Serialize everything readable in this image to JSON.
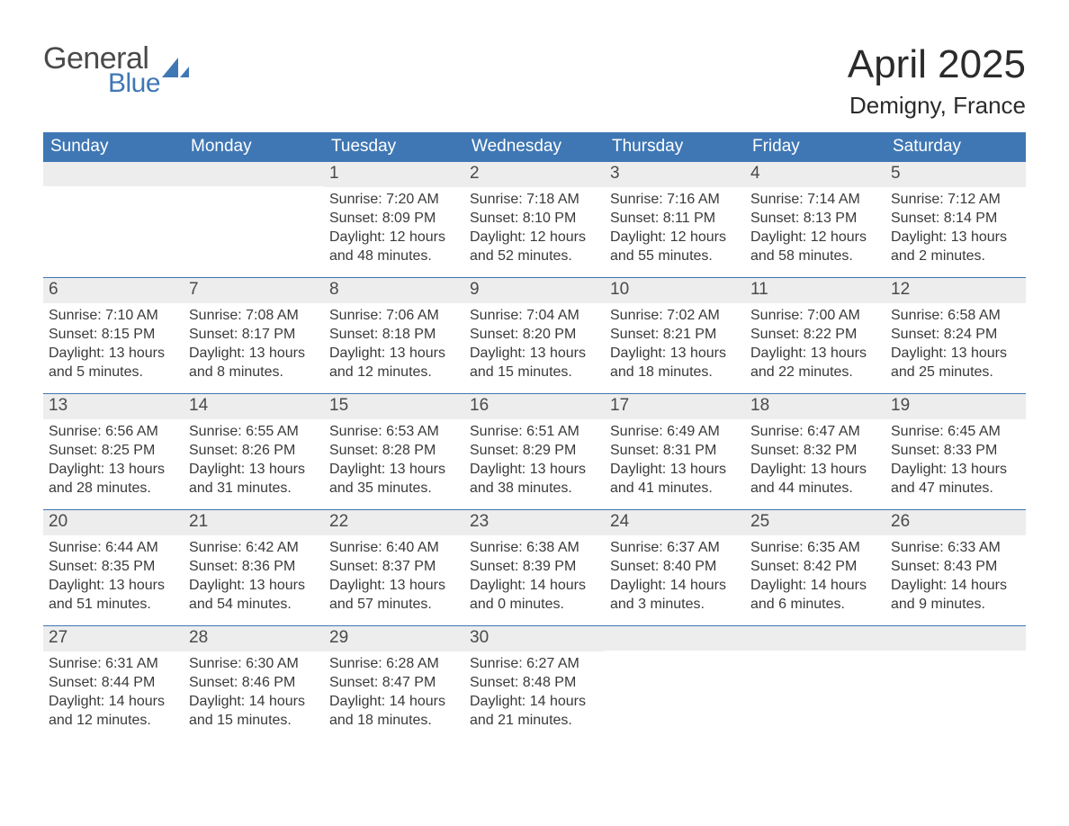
{
  "colors": {
    "header_bg": "#3f77b4",
    "header_text": "#ffffff",
    "daynum_bg": "#ededed",
    "body_text": "#333333",
    "logo_gray": "#4a4a4a",
    "logo_blue": "#3f77b4",
    "page_bg": "#ffffff",
    "row_divider": "#3f77b4"
  },
  "fonts": {
    "month_title_pt": 44,
    "location_pt": 26,
    "weekday_pt": 19,
    "daynum_pt": 19,
    "body_pt": 16
  },
  "logo": {
    "line1": "General",
    "line2": "Blue",
    "icon": "sail-triangle"
  },
  "title": "April 2025",
  "location": "Demigny, France",
  "weekdays": [
    "Sunday",
    "Monday",
    "Tuesday",
    "Wednesday",
    "Thursday",
    "Friday",
    "Saturday"
  ],
  "labels": {
    "sunrise": "Sunrise: ",
    "sunset": "Sunset: ",
    "daylight": "Daylight: "
  },
  "weeks": [
    [
      {
        "day": "",
        "sunrise": "",
        "sunset": "",
        "daylight": ""
      },
      {
        "day": "",
        "sunrise": "",
        "sunset": "",
        "daylight": ""
      },
      {
        "day": "1",
        "sunrise": "7:20 AM",
        "sunset": "8:09 PM",
        "daylight": "12 hours and 48 minutes."
      },
      {
        "day": "2",
        "sunrise": "7:18 AM",
        "sunset": "8:10 PM",
        "daylight": "12 hours and 52 minutes."
      },
      {
        "day": "3",
        "sunrise": "7:16 AM",
        "sunset": "8:11 PM",
        "daylight": "12 hours and 55 minutes."
      },
      {
        "day": "4",
        "sunrise": "7:14 AM",
        "sunset": "8:13 PM",
        "daylight": "12 hours and 58 minutes."
      },
      {
        "day": "5",
        "sunrise": "7:12 AM",
        "sunset": "8:14 PM",
        "daylight": "13 hours and 2 minutes."
      }
    ],
    [
      {
        "day": "6",
        "sunrise": "7:10 AM",
        "sunset": "8:15 PM",
        "daylight": "13 hours and 5 minutes."
      },
      {
        "day": "7",
        "sunrise": "7:08 AM",
        "sunset": "8:17 PM",
        "daylight": "13 hours and 8 minutes."
      },
      {
        "day": "8",
        "sunrise": "7:06 AM",
        "sunset": "8:18 PM",
        "daylight": "13 hours and 12 minutes."
      },
      {
        "day": "9",
        "sunrise": "7:04 AM",
        "sunset": "8:20 PM",
        "daylight": "13 hours and 15 minutes."
      },
      {
        "day": "10",
        "sunrise": "7:02 AM",
        "sunset": "8:21 PM",
        "daylight": "13 hours and 18 minutes."
      },
      {
        "day": "11",
        "sunrise": "7:00 AM",
        "sunset": "8:22 PM",
        "daylight": "13 hours and 22 minutes."
      },
      {
        "day": "12",
        "sunrise": "6:58 AM",
        "sunset": "8:24 PM",
        "daylight": "13 hours and 25 minutes."
      }
    ],
    [
      {
        "day": "13",
        "sunrise": "6:56 AM",
        "sunset": "8:25 PM",
        "daylight": "13 hours and 28 minutes."
      },
      {
        "day": "14",
        "sunrise": "6:55 AM",
        "sunset": "8:26 PM",
        "daylight": "13 hours and 31 minutes."
      },
      {
        "day": "15",
        "sunrise": "6:53 AM",
        "sunset": "8:28 PM",
        "daylight": "13 hours and 35 minutes."
      },
      {
        "day": "16",
        "sunrise": "6:51 AM",
        "sunset": "8:29 PM",
        "daylight": "13 hours and 38 minutes."
      },
      {
        "day": "17",
        "sunrise": "6:49 AM",
        "sunset": "8:31 PM",
        "daylight": "13 hours and 41 minutes."
      },
      {
        "day": "18",
        "sunrise": "6:47 AM",
        "sunset": "8:32 PM",
        "daylight": "13 hours and 44 minutes."
      },
      {
        "day": "19",
        "sunrise": "6:45 AM",
        "sunset": "8:33 PM",
        "daylight": "13 hours and 47 minutes."
      }
    ],
    [
      {
        "day": "20",
        "sunrise": "6:44 AM",
        "sunset": "8:35 PM",
        "daylight": "13 hours and 51 minutes."
      },
      {
        "day": "21",
        "sunrise": "6:42 AM",
        "sunset": "8:36 PM",
        "daylight": "13 hours and 54 minutes."
      },
      {
        "day": "22",
        "sunrise": "6:40 AM",
        "sunset": "8:37 PM",
        "daylight": "13 hours and 57 minutes."
      },
      {
        "day": "23",
        "sunrise": "6:38 AM",
        "sunset": "8:39 PM",
        "daylight": "14 hours and 0 minutes."
      },
      {
        "day": "24",
        "sunrise": "6:37 AM",
        "sunset": "8:40 PM",
        "daylight": "14 hours and 3 minutes."
      },
      {
        "day": "25",
        "sunrise": "6:35 AM",
        "sunset": "8:42 PM",
        "daylight": "14 hours and 6 minutes."
      },
      {
        "day": "26",
        "sunrise": "6:33 AM",
        "sunset": "8:43 PM",
        "daylight": "14 hours and 9 minutes."
      }
    ],
    [
      {
        "day": "27",
        "sunrise": "6:31 AM",
        "sunset": "8:44 PM",
        "daylight": "14 hours and 12 minutes."
      },
      {
        "day": "28",
        "sunrise": "6:30 AM",
        "sunset": "8:46 PM",
        "daylight": "14 hours and 15 minutes."
      },
      {
        "day": "29",
        "sunrise": "6:28 AM",
        "sunset": "8:47 PM",
        "daylight": "14 hours and 18 minutes."
      },
      {
        "day": "30",
        "sunrise": "6:27 AM",
        "sunset": "8:48 PM",
        "daylight": "14 hours and 21 minutes."
      },
      {
        "day": "",
        "sunrise": "",
        "sunset": "",
        "daylight": ""
      },
      {
        "day": "",
        "sunrise": "",
        "sunset": "",
        "daylight": ""
      },
      {
        "day": "",
        "sunrise": "",
        "sunset": "",
        "daylight": ""
      }
    ]
  ]
}
